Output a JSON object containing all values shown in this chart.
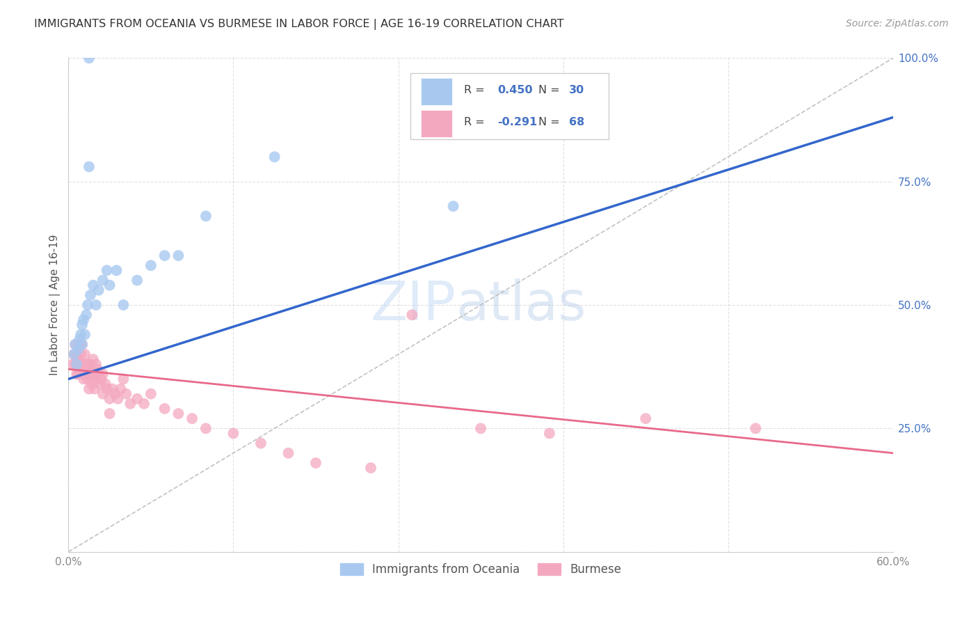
{
  "title": "IMMIGRANTS FROM OCEANIA VS BURMESE IN LABOR FORCE | AGE 16-19 CORRELATION CHART",
  "source": "Source: ZipAtlas.com",
  "ylabel": "In Labor Force | Age 16-19",
  "xlim": [
    0.0,
    0.6
  ],
  "ylim": [
    0.0,
    1.0
  ],
  "R_oceania": 0.45,
  "N_oceania": 30,
  "R_burmese": -0.291,
  "N_burmese": 68,
  "blue_color": "#A8C8F0",
  "pink_color": "#F4A8C0",
  "blue_line_color": "#3366CC",
  "pink_line_color": "#E8698A",
  "legend_text_color": "#4472C4",
  "grid_color": "#E0E0E0",
  "background_color": "#FFFFFF",
  "blue_line_x0": 0.0,
  "blue_line_y0": 0.35,
  "blue_line_x1": 0.6,
  "blue_line_y1": 0.88,
  "pink_line_x0": 0.0,
  "pink_line_y0": 0.37,
  "pink_line_x1": 0.6,
  "pink_line_y1": 0.2,
  "oceania_x": [
    0.004,
    0.005,
    0.006,
    0.007,
    0.008,
    0.009,
    0.01,
    0.01,
    0.011,
    0.012,
    0.013,
    0.014,
    0.015,
    0.016,
    0.018,
    0.02,
    0.022,
    0.025,
    0.028,
    0.03,
    0.035,
    0.04,
    0.05,
    0.06,
    0.07,
    0.08,
    0.1,
    0.15,
    0.28,
    0.015
  ],
  "oceania_y": [
    0.4,
    0.42,
    0.38,
    0.41,
    0.43,
    0.44,
    0.46,
    0.42,
    0.47,
    0.44,
    0.48,
    0.5,
    0.78,
    0.52,
    0.54,
    0.5,
    0.53,
    0.55,
    0.57,
    0.54,
    0.57,
    0.5,
    0.55,
    0.58,
    0.6,
    0.6,
    0.68,
    0.8,
    0.7,
    1.0
  ],
  "burmese_x": [
    0.003,
    0.004,
    0.005,
    0.005,
    0.006,
    0.006,
    0.007,
    0.007,
    0.008,
    0.008,
    0.009,
    0.009,
    0.01,
    0.01,
    0.011,
    0.011,
    0.012,
    0.012,
    0.013,
    0.013,
    0.014,
    0.014,
    0.015,
    0.015,
    0.016,
    0.016,
    0.017,
    0.017,
    0.018,
    0.018,
    0.019,
    0.019,
    0.02,
    0.02,
    0.021,
    0.022,
    0.023,
    0.024,
    0.025,
    0.025,
    0.027,
    0.028,
    0.03,
    0.032,
    0.034,
    0.036,
    0.038,
    0.04,
    0.042,
    0.045,
    0.05,
    0.055,
    0.06,
    0.07,
    0.08,
    0.09,
    0.1,
    0.12,
    0.14,
    0.16,
    0.18,
    0.22,
    0.25,
    0.3,
    0.35,
    0.42,
    0.5,
    0.03
  ],
  "burmese_y": [
    0.38,
    0.4,
    0.42,
    0.38,
    0.36,
    0.4,
    0.39,
    0.36,
    0.38,
    0.42,
    0.37,
    0.4,
    0.36,
    0.42,
    0.38,
    0.35,
    0.37,
    0.4,
    0.36,
    0.38,
    0.35,
    0.37,
    0.33,
    0.38,
    0.36,
    0.38,
    0.34,
    0.37,
    0.35,
    0.39,
    0.36,
    0.33,
    0.35,
    0.38,
    0.37,
    0.36,
    0.34,
    0.35,
    0.32,
    0.36,
    0.34,
    0.33,
    0.31,
    0.33,
    0.32,
    0.31,
    0.33,
    0.35,
    0.32,
    0.3,
    0.31,
    0.3,
    0.32,
    0.29,
    0.28,
    0.27,
    0.25,
    0.24,
    0.22,
    0.2,
    0.18,
    0.17,
    0.48,
    0.25,
    0.24,
    0.27,
    0.25,
    0.28
  ]
}
